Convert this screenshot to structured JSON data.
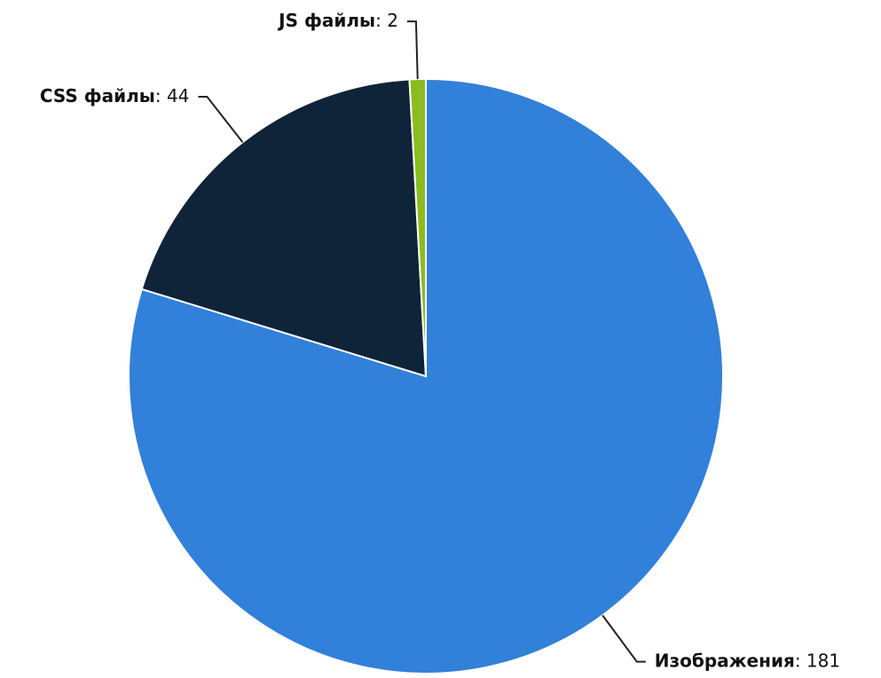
{
  "chart_data": {
    "type": "pie",
    "categories": [
      "Изображения",
      "CSS файлы",
      "JS файлы"
    ],
    "values": [
      181,
      44,
      2
    ],
    "colors": [
      "#3180d9",
      "#0f2339",
      "#8bbb1f"
    ]
  }
}
